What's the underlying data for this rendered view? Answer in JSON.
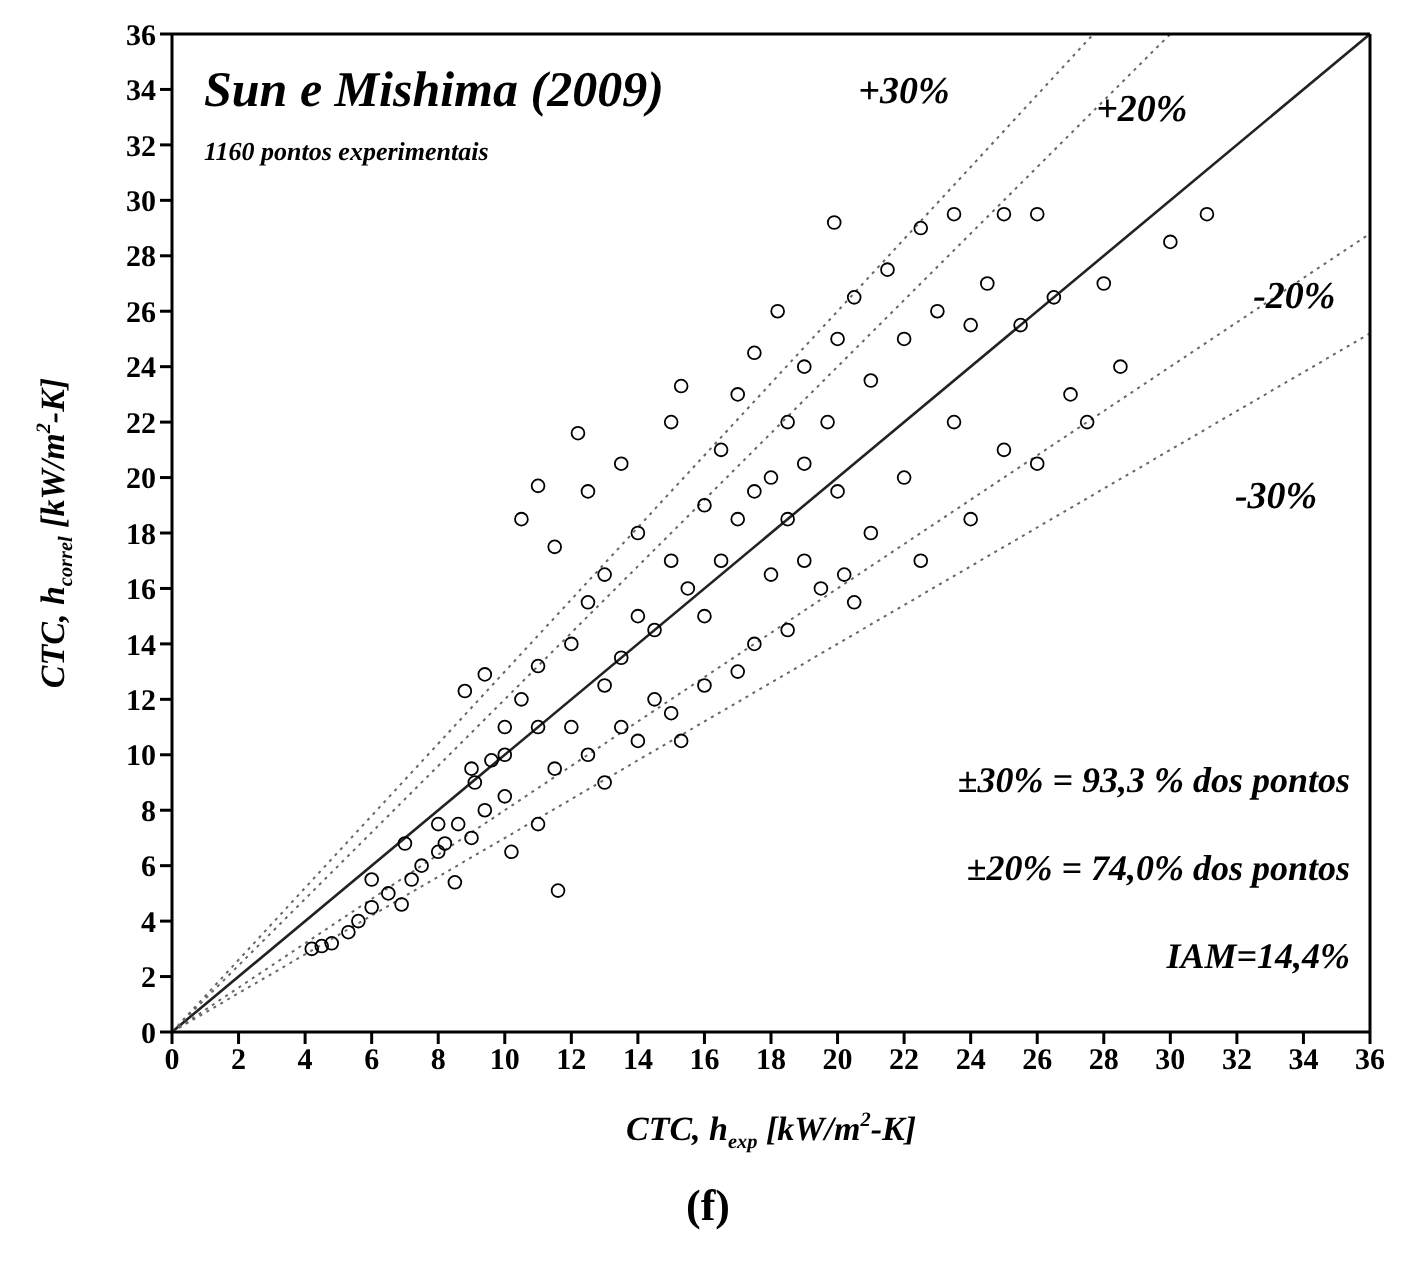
{
  "chart_data": {
    "type": "scatter",
    "title": "Sun e Mishima (2009)",
    "subtitle": "1160 pontos experimentais",
    "xlabel": "CTC, h$_{exp}$ [kW/m$^{2}$-K]",
    "ylabel": "CTC, h$_{correl}$ [kW/m$^{2}$-K]",
    "xlim": [
      0,
      36
    ],
    "ylim": [
      0,
      36
    ],
    "xticks": [
      0,
      2,
      4,
      6,
      8,
      10,
      12,
      14,
      16,
      18,
      20,
      22,
      24,
      26,
      28,
      30,
      32,
      34,
      36
    ],
    "yticks": [
      0,
      2,
      4,
      6,
      8,
      10,
      12,
      14,
      16,
      18,
      20,
      22,
      24,
      26,
      28,
      30,
      32,
      34,
      36
    ],
    "marker": "circle",
    "series": [
      {
        "color": "#000000",
        "x": [
          4.2,
          4.5,
          4.8,
          5.3,
          5.6,
          6.0,
          6.5,
          6.9,
          7.2,
          7.5,
          8.0,
          8.2,
          8.5,
          8.6,
          9.0,
          9.1,
          9.4,
          9.6,
          10.0,
          10.0,
          10.5,
          10.2,
          11.0,
          11.5,
          11.6,
          11.0,
          12.0,
          12.0,
          12.5,
          13.0,
          13.0,
          13.5,
          14.0,
          14.5,
          15.0,
          15.3,
          8.8,
          9.4,
          10.5,
          11.0,
          12.2,
          11.5,
          12.5,
          13.0,
          13.5,
          14.0,
          14.0,
          15.0,
          15.3,
          15.0,
          16.0,
          16.0,
          16.5,
          17.0,
          17.0,
          17.5,
          17.5,
          18.0,
          18.0,
          18.2,
          18.5,
          19.0,
          19.0,
          19.9,
          19.7,
          20.0,
          20.0,
          20.5,
          20.5,
          21.0,
          21.0,
          21.5,
          22.0,
          22.0,
          22.5,
          22.5,
          23.0,
          23.5,
          23.5,
          24.0,
          24.0,
          24.5,
          25.0,
          25.0,
          25.5,
          26.0,
          26.0,
          26.5,
          27.0,
          27.5,
          28.0,
          28.5,
          30.0,
          31.1,
          16.0,
          17.0,
          18.5,
          19.5,
          20.2,
          12.5,
          13.5,
          14.5,
          15.5,
          16.5,
          17.5,
          18.5,
          19.0,
          10.0,
          11.0,
          9.0,
          8.0,
          7.0,
          6.0
        ],
        "values": [
          3.0,
          3.1,
          3.2,
          3.6,
          4.0,
          4.5,
          5.0,
          4.6,
          5.5,
          6.0,
          6.5,
          6.8,
          5.4,
          7.5,
          7.0,
          9.0,
          8.0,
          9.8,
          11.0,
          8.5,
          12.0,
          6.5,
          7.5,
          9.5,
          5.1,
          13.2,
          11.0,
          14.0,
          10.0,
          9.0,
          12.5,
          11.0,
          10.5,
          12.0,
          11.5,
          10.5,
          12.3,
          12.9,
          18.5,
          19.7,
          21.6,
          17.5,
          19.5,
          16.5,
          20.5,
          18.0,
          15.0,
          22.0,
          23.3,
          17.0,
          19.0,
          15.0,
          21.0,
          18.5,
          23.0,
          24.5,
          14.0,
          20.0,
          16.5,
          26.0,
          22.0,
          24.0,
          17.0,
          29.2,
          22.0,
          25.0,
          19.5,
          26.5,
          15.5,
          23.5,
          18.0,
          27.5,
          25.0,
          20.0,
          29.0,
          17.0,
          26.0,
          29.5,
          22.0,
          25.5,
          18.5,
          27.0,
          29.5,
          21.0,
          25.5,
          29.5,
          20.5,
          26.5,
          23.0,
          22.0,
          27.0,
          24.0,
          28.5,
          29.5,
          12.5,
          13.0,
          14.5,
          16.0,
          16.5,
          15.5,
          13.5,
          14.5,
          16.0,
          17.0,
          19.5,
          18.5,
          20.5,
          10.0,
          11.0,
          9.5,
          7.5,
          6.8,
          5.5
        ]
      },
      {
        "type": "line",
        "color": "#222222",
        "line_style": "solid",
        "marker": "none",
        "x": [
          0,
          36
        ],
        "values": [
          0,
          36
        ]
      },
      {
        "type": "line",
        "color": "#666666",
        "line_style": "dotted",
        "marker": "none",
        "x": [
          0,
          27.69
        ],
        "values": [
          0,
          36
        ]
      },
      {
        "type": "line",
        "color": "#666666",
        "line_style": "dotted",
        "marker": "none",
        "x": [
          0,
          30
        ],
        "values": [
          0,
          36
        ]
      },
      {
        "type": "line",
        "color": "#666666",
        "line_style": "dotted",
        "marker": "none",
        "x": [
          0,
          36
        ],
        "values": [
          0,
          28.8
        ]
      },
      {
        "type": "line",
        "color": "#666666",
        "line_style": "dotted",
        "marker": "none",
        "x": [
          0,
          36
        ],
        "values": [
          0,
          25.2
        ]
      }
    ],
    "annotations": [
      "+30%",
      "+20%",
      "-20%",
      "-30%",
      "±30% = 93,3 % dos pontos",
      "±20% = 74,0% dos pontos",
      "IAM=14,4%",
      "(f)"
    ]
  }
}
